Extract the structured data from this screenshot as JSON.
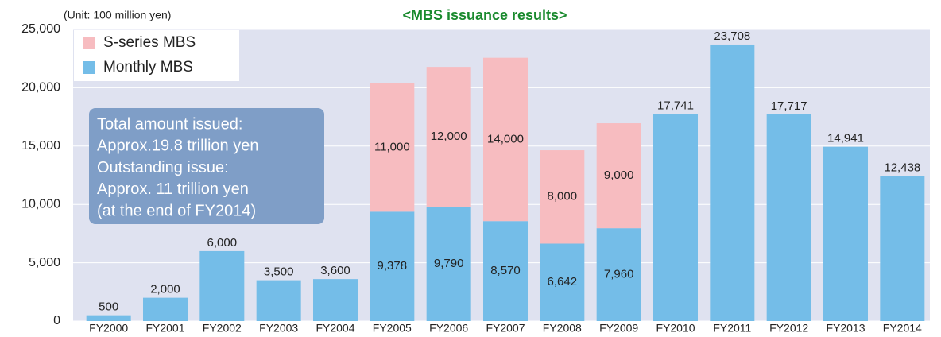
{
  "chart_data": {
    "type": "stacked_bar",
    "title": "<MBS issuance results>",
    "unit_label": "(Unit: 100 million yen)",
    "annotation": [
      "Total amount issued:",
      "Approx.19.8 trillion yen",
      "Outstanding issue:",
      "Approx. 11 trillion yen",
      "(at the end of FY2014)"
    ],
    "categories": [
      "FY2000",
      "FY2001",
      "FY2002",
      "FY2003",
      "FY2004",
      "FY2005",
      "FY2006",
      "FY2007",
      "FY2008",
      "FY2009",
      "FY2010",
      "FY2011",
      "FY2012",
      "FY2013",
      "FY2014"
    ],
    "series": [
      {
        "name": "Monthly MBS",
        "color": "#74bde8",
        "values": [
          500,
          2000,
          6000,
          3500,
          3600,
          9378,
          9790,
          8570,
          6642,
          7960,
          17741,
          23708,
          17717,
          14941,
          12438
        ],
        "value_labels": [
          "500",
          "2,000",
          "6,000",
          "3,500",
          "3,600",
          "9,378",
          "9,790",
          "8,570",
          "6,642",
          "7,960",
          "17,741",
          "23,708",
          "17,717",
          "14,941",
          "12,438"
        ]
      },
      {
        "name": "S-series MBS",
        "color": "#f7bcc0",
        "values": [
          null,
          null,
          null,
          null,
          null,
          11000,
          12000,
          14000,
          8000,
          9000,
          null,
          null,
          null,
          null,
          null
        ],
        "value_labels": [
          null,
          null,
          null,
          null,
          null,
          "11,000",
          "12,000",
          "14,000",
          "8,000",
          "9,000",
          null,
          null,
          null,
          null,
          null
        ]
      }
    ],
    "ylim": [
      0,
      25000
    ],
    "yticks": [
      0,
      {
        "value": 5000,
        "label": "5,000"
      },
      {
        "value": 10000,
        "label": "10,000"
      },
      {
        "value": 15000,
        "label": "15,000"
      },
      {
        "value": 20000,
        "label": "20,000"
      },
      {
        "value": 25000,
        "label": "25,000"
      }
    ],
    "grid": true
  }
}
